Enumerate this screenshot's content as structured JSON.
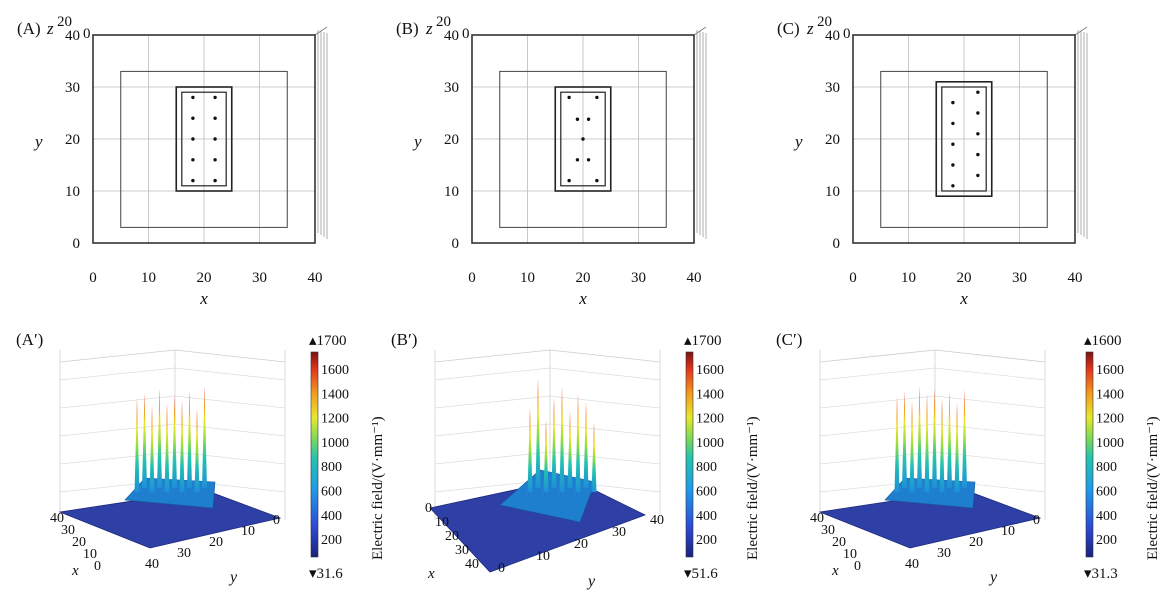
{
  "figure": {
    "top_panels": [
      {
        "label": "(A)",
        "z_label": "z",
        "z_ticks": [
          "20",
          "0"
        ],
        "x_label": "x",
        "y_label": "y",
        "x_ticks": [
          "0",
          "10",
          "20",
          "30",
          "40"
        ],
        "y_ticks": [
          "0",
          "10",
          "20",
          "30",
          "40"
        ],
        "electrode_points": [
          [
            18,
            28
          ],
          [
            22,
            28
          ],
          [
            18,
            24
          ],
          [
            22,
            24
          ],
          [
            18,
            20
          ],
          [
            22,
            20
          ],
          [
            18,
            16
          ],
          [
            22,
            16
          ],
          [
            18,
            12
          ],
          [
            22,
            12
          ]
        ]
      },
      {
        "label": "(B)",
        "z_label": "z",
        "z_ticks": [
          "20",
          "0"
        ],
        "x_label": "x",
        "y_label": "y",
        "x_ticks": [
          "0",
          "10",
          "20",
          "30",
          "40"
        ],
        "y_ticks": [
          "0",
          "10",
          "20",
          "30",
          "40"
        ],
        "electrode_points": [
          [
            17.5,
            28
          ],
          [
            22.5,
            28
          ],
          [
            19,
            23.8
          ],
          [
            21,
            23.8
          ],
          [
            20,
            20
          ],
          [
            19,
            16
          ],
          [
            21,
            16
          ],
          [
            17.5,
            12
          ],
          [
            22.5,
            12
          ]
        ]
      },
      {
        "label": "(C)",
        "z_label": "z",
        "z_ticks": [
          "20",
          "0"
        ],
        "x_label": "x",
        "y_label": "y",
        "x_ticks": [
          "0",
          "10",
          "20",
          "30",
          "40"
        ],
        "y_ticks": [
          "0",
          "10",
          "20",
          "30",
          "40"
        ],
        "electrode_points": [
          [
            22.5,
            29
          ],
          [
            18,
            27
          ],
          [
            22.5,
            25
          ],
          [
            18,
            23
          ],
          [
            22.5,
            21
          ],
          [
            18,
            19
          ],
          [
            22.5,
            17
          ],
          [
            18,
            15
          ],
          [
            22.5,
            13
          ],
          [
            18,
            11
          ]
        ]
      }
    ],
    "bottom_panels": [
      {
        "label": "(A′)",
        "colorbar_max": "1700",
        "colorbar_min": "31.6",
        "colorbar_ticks": [
          "1600",
          "1400",
          "1200",
          "1000",
          "800",
          "600",
          "400",
          "200"
        ],
        "colorbar_label": "Electric field/(V·mm⁻¹)",
        "axis1_label": "x",
        "axis2_label": "y",
        "axis1_ticks": [
          "40",
          "30",
          "20",
          "10",
          "0"
        ],
        "axis2_ticks": [
          "40",
          "30",
          "20",
          "10",
          "0"
        ],
        "peak_heights": [
          0.78,
          0.82,
          0.72,
          0.86,
          0.74,
          0.8,
          0.76,
          0.84,
          0.7,
          0.88
        ]
      },
      {
        "label": "(B′)",
        "colorbar_max": "1700",
        "colorbar_min": "51.6",
        "colorbar_ticks": [
          "1600",
          "1400",
          "1200",
          "1000",
          "800",
          "600",
          "400",
          "200"
        ],
        "colorbar_label": "Electric field/(V·mm⁻¹)",
        "axis1_label": "x",
        "axis2_label": "y",
        "axis1_ticks": [
          "0",
          "10",
          "20",
          "30",
          "40"
        ],
        "axis2_ticks": [
          "0",
          "10",
          "20",
          "30",
          "40"
        ],
        "peak_heights": [
          0.7,
          0.95,
          0.6,
          0.78,
          0.88,
          0.66,
          0.82,
          0.74,
          0.58
        ]
      },
      {
        "label": "(C′)",
        "colorbar_max": "1600",
        "colorbar_min": "31.3",
        "colorbar_ticks": [
          "1600",
          "1400",
          "1200",
          "1000",
          "800",
          "600",
          "400",
          "200"
        ],
        "colorbar_label": "Electric field/(V·mm⁻¹)",
        "axis1_label": "x",
        "axis2_label": "y",
        "axis1_ticks": [
          "40",
          "30",
          "20",
          "10",
          "0"
        ],
        "axis2_ticks": [
          "40",
          "30",
          "20",
          "10",
          "0"
        ],
        "peak_heights": [
          0.8,
          0.84,
          0.76,
          0.88,
          0.82,
          0.86,
          0.78,
          0.83,
          0.75,
          0.85
        ]
      }
    ]
  }
}
